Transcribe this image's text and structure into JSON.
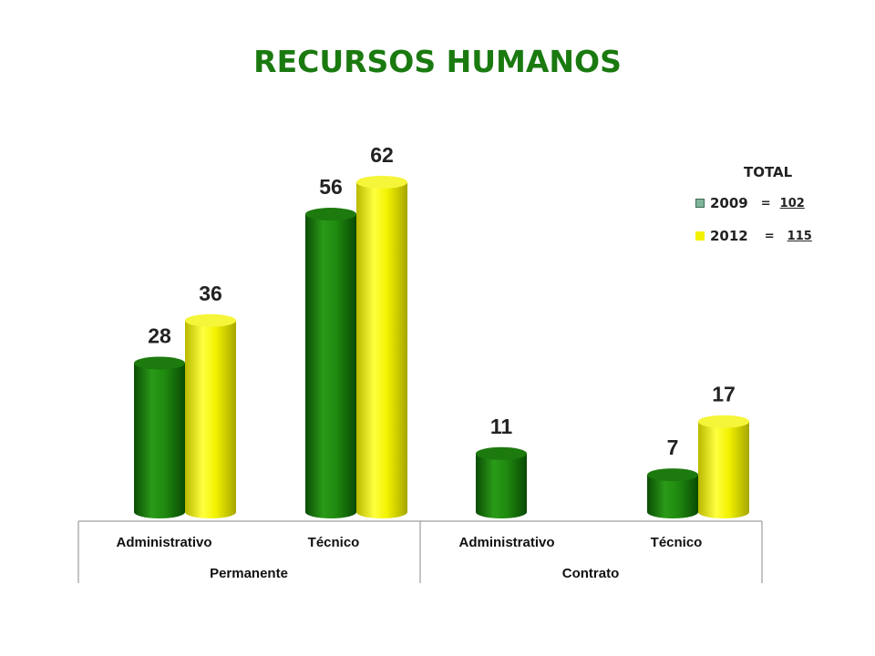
{
  "title": "RECURSOS HUMANOS",
  "legend": {
    "heading": "TOTAL",
    "items": [
      {
        "label": "2009",
        "equals": "=",
        "total": "102",
        "color": "#7fb59a"
      },
      {
        "label": "2012",
        "equals": "=",
        "total": "115",
        "color": "#f2f200"
      }
    ]
  },
  "chart_data": {
    "type": "bar",
    "title": "RECURSOS HUMANOS",
    "categories": [
      "Administrativo",
      "Técnico",
      "Administrativo",
      "Técnico"
    ],
    "groups": [
      {
        "label": "Permanente",
        "categories": [
          "Administrativo",
          "Técnico"
        ]
      },
      {
        "label": "Contrato",
        "categories": [
          "Administrativo",
          "Técnico"
        ]
      }
    ],
    "series": [
      {
        "name": "2009",
        "values": [
          28,
          56,
          11,
          7
        ],
        "color": "#1f8a0f"
      },
      {
        "name": "2012",
        "values": [
          36,
          62,
          null,
          17
        ],
        "color": "#f2f200"
      }
    ],
    "ylim": [
      0,
      62
    ],
    "grid": false,
    "legend_position": "top-right"
  }
}
